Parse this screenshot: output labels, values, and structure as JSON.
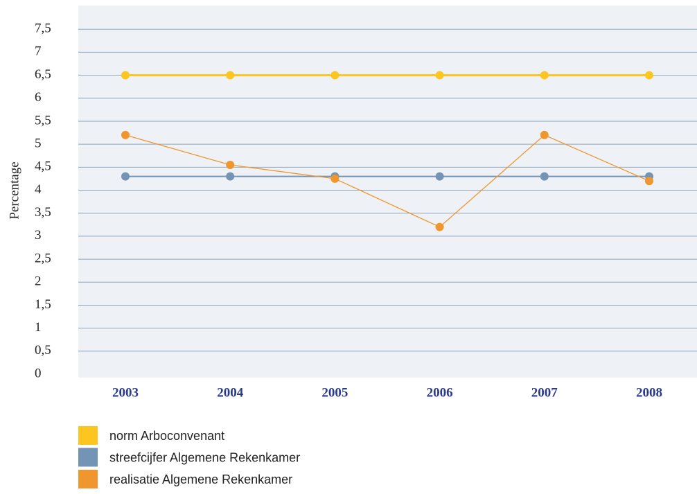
{
  "chart_data": {
    "type": "line",
    "y_label": "Percentage",
    "categories": [
      "2003",
      "2004",
      "2005",
      "2006",
      "2007",
      "2008"
    ],
    "series": [
      {
        "name": "norm Arboconvenant",
        "color": "#fcc520",
        "values": [
          6.5,
          6.5,
          6.5,
          6.5,
          6.5,
          6.5
        ]
      },
      {
        "name": "streefcijfer Algemene Rekenkamer",
        "color": "#7394b4",
        "values": [
          4.3,
          4.3,
          4.3,
          4.3,
          4.3,
          4.3
        ]
      },
      {
        "name": "realisatie Algemene Rekenkamer",
        "color": "#f0962e",
        "values": [
          5.2,
          4.55,
          4.25,
          3.2,
          5.2,
          4.2
        ]
      }
    ],
    "ylim": [
      0,
      8
    ],
    "yticks": [
      0,
      {
        "value": 0.5,
        "label": "0,5"
      },
      1,
      {
        "value": 1.5,
        "label": "1,5"
      },
      2,
      {
        "value": 2.5,
        "label": "2,5"
      },
      3,
      {
        "value": 3.5,
        "label": "3,5"
      },
      4,
      {
        "value": 4.5,
        "label": "4,5"
      },
      5,
      {
        "value": 5.5,
        "label": "5,5"
      },
      6,
      {
        "value": 6.5,
        "label": "6,5"
      },
      7,
      {
        "value": 7.5,
        "label": "7,5"
      }
    ],
    "grid": true,
    "legend": "bottom-left"
  }
}
